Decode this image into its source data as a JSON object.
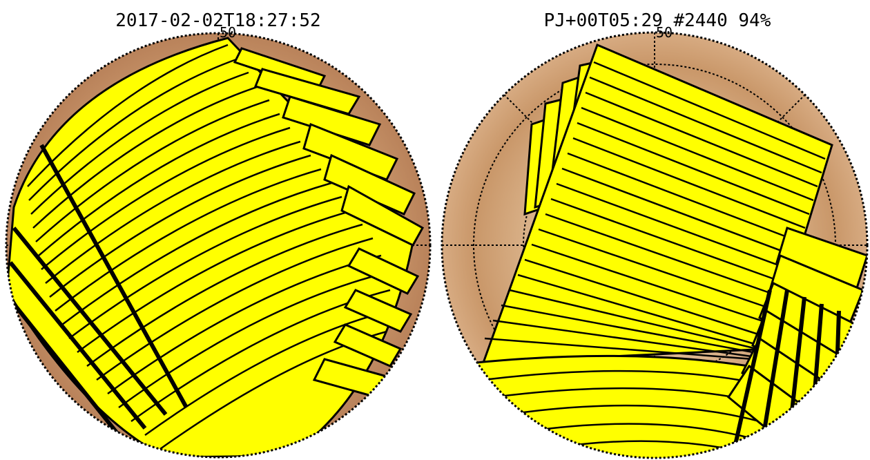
{
  "left_panel": {
    "title": "2017-02-02T18:27:52",
    "latitude_label": "50"
  },
  "right_panel": {
    "title": "PJ+00T05:29 #2440 94%",
    "latitude_label": "50"
  },
  "colors": {
    "footprint_fill": "#ffff00",
    "footprint_stroke": "#000000",
    "planet_base": "#d2a87c",
    "grid_line": "#000000"
  }
}
